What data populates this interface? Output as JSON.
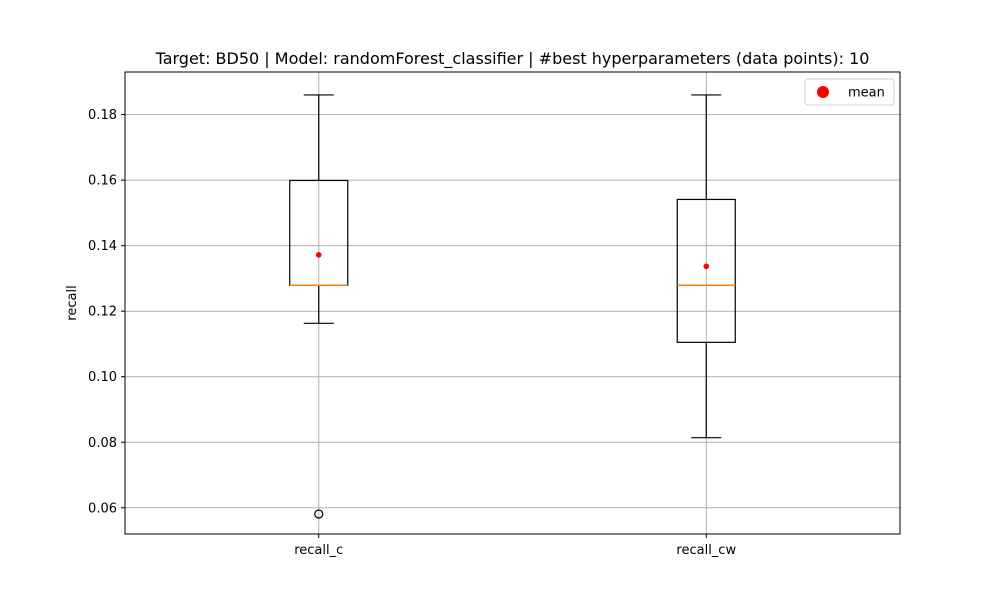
{
  "chart_data": {
    "type": "box",
    "title": "Target: BD50 | Model: randomForest_classifier | #best hyperparameters (data points): 10",
    "xlabel": "",
    "ylabel": "recall",
    "ylim": [
      0.052,
      0.193
    ],
    "yticks": [
      0.06,
      0.08,
      0.1,
      0.12,
      0.14,
      0.16,
      0.18
    ],
    "ytick_labels": [
      "0.06",
      "0.08",
      "0.10",
      "0.12",
      "0.14",
      "0.16",
      "0.18"
    ],
    "grid": true,
    "categories": [
      "recall_c",
      "recall_cw"
    ],
    "boxes": [
      {
        "name": "recall_c",
        "whisker_low": 0.1163,
        "q1": 0.1279,
        "median": 0.1279,
        "q3": 0.1599,
        "whisker_high": 0.186,
        "mean": 0.1372,
        "outliers": [
          0.0581
        ]
      },
      {
        "name": "recall_cw",
        "whisker_low": 0.0814,
        "q1": 0.1105,
        "median": 0.1279,
        "q3": 0.1541,
        "whisker_high": 0.186,
        "mean": 0.1337,
        "outliers": []
      }
    ],
    "legend": {
      "position": "top-right",
      "entries": [
        {
          "label": "mean",
          "marker": "circle",
          "color": "#ff0000"
        }
      ]
    },
    "colors": {
      "box": "#000000",
      "median": "#ff7f0e",
      "mean": "#ff0000",
      "grid": "#b0b0b0",
      "outlier": "#000000"
    }
  }
}
